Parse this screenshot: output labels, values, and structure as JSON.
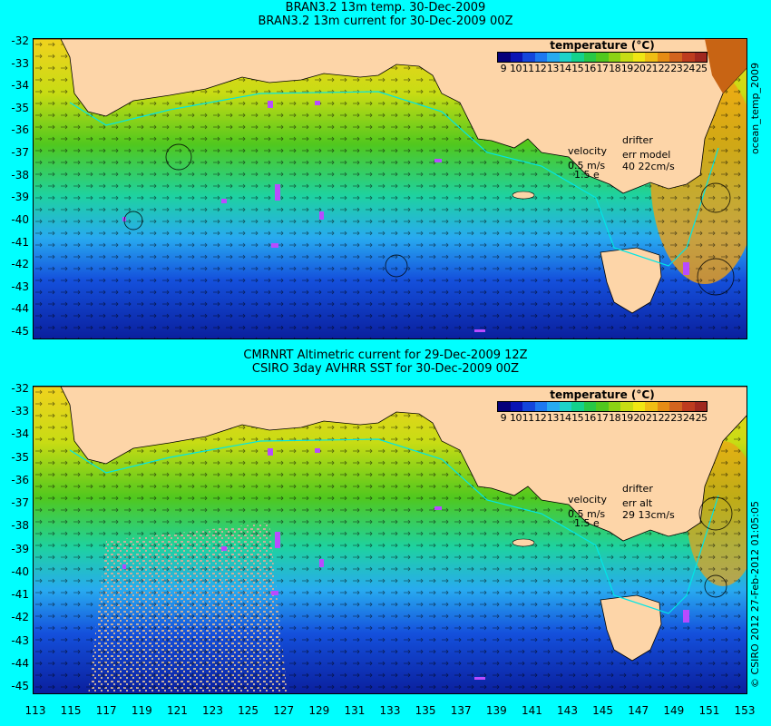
{
  "panels": [
    {
      "title_line1": "BRAN3.2 13m temp. 30-Dec-2009",
      "title_line2": "BRAN3.2 13m current for 30-Dec-2009 00Z",
      "legend_title": "temperature (°C)",
      "velocity_label": "velocity",
      "velocity_scale": "0.5 m/s",
      "velocity_scale2": "1.5 e",
      "drifter_label": "drifter",
      "err_label": "err model",
      "err_value": "40 22cm/s",
      "side_label": "ocean_temp_2009"
    },
    {
      "title_line1": "CMRNRT Altimetric current for 29-Dec-2009 12Z",
      "title_line2": "CSIRO 3day AVHRR SST for 30-Dec-2009 00Z",
      "legend_title": "temperature (°C)",
      "velocity_label": "velocity",
      "velocity_scale": "0.5 m/s",
      "velocity_scale2": "1.5 e",
      "drifter_label": "drifter",
      "err_label": "err alt",
      "err_value": "29 13cm/s",
      "side_label": "© CSIRO 2012   27-Feb-2012 01:05:05"
    }
  ],
  "colorbar_labels": [
    "9",
    "10",
    "11",
    "12",
    "13",
    "14",
    "15",
    "16",
    "17",
    "18",
    "19",
    "20",
    "21",
    "22",
    "23",
    "24",
    "25"
  ],
  "colorbar_colors": [
    "#06007a",
    "#0a14b4",
    "#1446dc",
    "#1e78f0",
    "#28aaf0",
    "#1ed2c8",
    "#14d28c",
    "#28c846",
    "#50c81e",
    "#8cd214",
    "#c8dc14",
    "#f0e614",
    "#f0be14",
    "#e68c14",
    "#d2641e",
    "#be3c1e",
    "#a0281e"
  ],
  "y_ticks": [
    "-32",
    "-33",
    "-34",
    "-35",
    "-36",
    "-37",
    "-38",
    "-39",
    "-40",
    "-41",
    "-42",
    "-43",
    "-44",
    "-45"
  ],
  "x_ticks": [
    "113",
    "115",
    "117",
    "119",
    "121",
    "123",
    "125",
    "127",
    "129",
    "131",
    "133",
    "135",
    "137",
    "139",
    "141",
    "143",
    "145",
    "147",
    "149",
    "151",
    "153"
  ],
  "colors": {
    "land": "#fdd5a8",
    "background": "#00ffff",
    "drifter": "#b84bff",
    "no_data": "#c8b09c"
  }
}
